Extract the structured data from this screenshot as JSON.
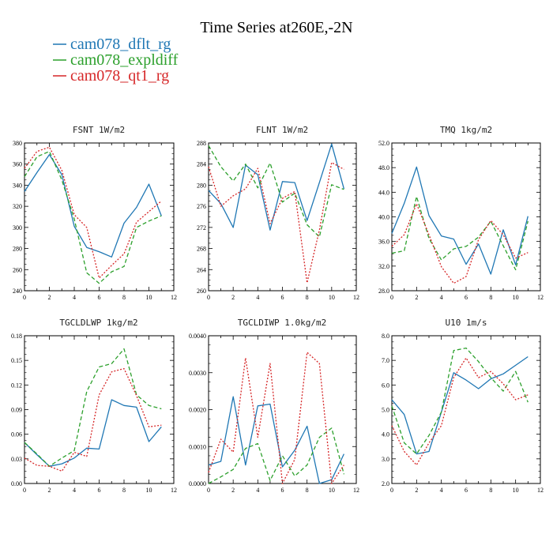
{
  "title": "Time Series at260E,-2N",
  "legend": [
    {
      "label": "cam078_dflt_rg",
      "color": "#1f77b4",
      "dash": "solid"
    },
    {
      "label": "cam078_expldiff",
      "color": "#2ca02c",
      "dash": "dashed"
    },
    {
      "label": "cam078_qt1_rg",
      "color": "#d62728",
      "dash": "dotted"
    }
  ],
  "chart_data": [
    {
      "type": "line",
      "title": "FSNT   1W/m2",
      "x": [
        0,
        1,
        2,
        3,
        4,
        5,
        6,
        7,
        8,
        9,
        10,
        11
      ],
      "xlim": [
        0,
        12
      ],
      "xticks": [
        "0",
        "2",
        "4",
        "6",
        "8",
        "10",
        "12"
      ],
      "ylim": [
        240,
        380
      ],
      "yticks": [
        "240",
        "260",
        "280",
        "300",
        "320",
        "340",
        "360",
        "380"
      ],
      "series": [
        {
          "name": "cam078_dflt_rg",
          "values": [
            334,
            352,
            369,
            350,
            301,
            281,
            277,
            272,
            304,
            319,
            341,
            311
          ]
        },
        {
          "name": "cam078_expldiff",
          "values": [
            348,
            367,
            372,
            345,
            308,
            257,
            247,
            258,
            263,
            300,
            306,
            311
          ]
        },
        {
          "name": "cam078_qt1_rg",
          "values": [
            356,
            372,
            376,
            354,
            312,
            300,
            252,
            264,
            275,
            305,
            315,
            325
          ]
        }
      ]
    },
    {
      "type": "line",
      "title": "FLNT   1W/m2",
      "x": [
        0,
        1,
        2,
        3,
        4,
        5,
        6,
        7,
        8,
        9,
        10,
        11
      ],
      "xlim": [
        0,
        12
      ],
      "xticks": [
        "0",
        "2",
        "4",
        "6",
        "8",
        "10",
        "12"
      ],
      "ylim": [
        260,
        288
      ],
      "yticks": [
        "260",
        "264",
        "268",
        "272",
        "276",
        "280",
        "284",
        "288"
      ],
      "series": [
        {
          "name": "cam078_dflt_rg",
          "values": [
            279,
            276.5,
            272,
            283.8,
            282,
            271.5,
            280.7,
            280.5,
            273.3,
            280.5,
            287.8,
            279.3
          ]
        },
        {
          "name": "cam078_expldiff",
          "values": [
            287.5,
            283.5,
            280.8,
            284,
            279.5,
            284.2,
            276.8,
            278.5,
            272.5,
            270.2,
            280.1,
            279.2
          ]
        },
        {
          "name": "cam078_qt1_rg",
          "values": [
            283.5,
            276,
            278,
            279.3,
            283.2,
            272.7,
            277.5,
            278.8,
            261.5,
            271.5,
            284.3,
            283
          ]
        }
      ]
    },
    {
      "type": "line",
      "title": "TMQ   1kg/m2",
      "x": [
        0,
        1,
        2,
        3,
        4,
        5,
        6,
        7,
        8,
        9,
        10,
        11
      ],
      "xlim": [
        0,
        12
      ],
      "xticks": [
        "0",
        "2",
        "4",
        "6",
        "8",
        "10",
        "12"
      ],
      "ylim": [
        28.0,
        52.0
      ],
      "yticks": [
        "28.0",
        "32.0",
        "36.0",
        "40.0",
        "44.0",
        "48.0",
        "52.0"
      ],
      "series": [
        {
          "name": "cam078_dflt_rg",
          "values": [
            37.3,
            42.2,
            48.1,
            40.2,
            36.9,
            36.4,
            32.3,
            35.6,
            30.7,
            37.9,
            32.2,
            40.1
          ]
        },
        {
          "name": "cam078_expldiff",
          "values": [
            34.1,
            34.5,
            43.3,
            36.5,
            33.0,
            34.8,
            35.2,
            36.7,
            39.3,
            35.3,
            31.4,
            39.3
          ]
        },
        {
          "name": "cam078_qt1_rg",
          "values": [
            35.2,
            37.1,
            42.1,
            37.1,
            31.9,
            29.2,
            30.3,
            36.3,
            39.4,
            37.1,
            33.3,
            34.2
          ]
        }
      ]
    },
    {
      "type": "line",
      "title": "TGCLDLWP   1kg/m2",
      "x": [
        0,
        1,
        2,
        3,
        4,
        5,
        6,
        7,
        8,
        9,
        10,
        11
      ],
      "xlim": [
        0,
        12
      ],
      "xticks": [
        "0",
        "2",
        "4",
        "6",
        "8",
        "10",
        "12"
      ],
      "ylim": [
        0.0,
        0.18
      ],
      "yticks": [
        "0.00",
        "0.03",
        "0.06",
        "0.09",
        "0.12",
        "0.15",
        "0.18"
      ],
      "series": [
        {
          "name": "cam078_dflt_rg",
          "values": [
            0.05,
            0.035,
            0.021,
            0.024,
            0.031,
            0.043,
            0.042,
            0.102,
            0.095,
            0.093,
            0.051,
            0.069
          ]
        },
        {
          "name": "cam078_expldiff",
          "values": [
            0.05,
            0.036,
            0.021,
            0.031,
            0.04,
            0.112,
            0.142,
            0.146,
            0.164,
            0.108,
            0.095,
            0.091
          ]
        },
        {
          "name": "cam078_qt1_rg",
          "values": [
            0.031,
            0.022,
            0.021,
            0.015,
            0.038,
            0.033,
            0.108,
            0.136,
            0.14,
            0.107,
            0.069,
            0.071
          ]
        }
      ]
    },
    {
      "type": "line",
      "title": "TGCLDIWP   1.0kg/m2",
      "x": [
        0,
        1,
        2,
        3,
        4,
        5,
        6,
        7,
        8,
        9,
        10,
        11
      ],
      "xlim": [
        0,
        12
      ],
      "xticks": [
        "0",
        "2",
        "4",
        "6",
        "8",
        "10",
        "12"
      ],
      "ylim": [
        0.0,
        0.004
      ],
      "yticks": [
        "0.0000",
        "0.0010",
        "0.0020",
        "0.0030",
        "0.0040"
      ],
      "series": [
        {
          "name": "cam078_dflt_rg",
          "values": [
            0.0005,
            0.0006,
            0.00235,
            0.0005,
            0.0021,
            0.00215,
            0.00045,
            0.0009,
            0.00155,
            0.0,
            0.0001,
            0.0008
          ]
        },
        {
          "name": "cam078_expldiff",
          "values": [
            0.0,
            0.00018,
            0.00038,
            0.00095,
            0.00108,
            8e-05,
            0.00075,
            0.0002,
            0.0005,
            0.00125,
            0.0015,
            0.00025
          ]
        },
        {
          "name": "cam078_qt1_rg",
          "values": [
            0.0003,
            0.0012,
            0.00085,
            0.0034,
            0.00125,
            0.00325,
            0.0,
            0.00065,
            0.00355,
            0.00325,
            0.0,
            0.0005
          ]
        }
      ]
    },
    {
      "type": "line",
      "title": "U10   1m/s",
      "x": [
        0,
        1,
        2,
        3,
        4,
        5,
        6,
        7,
        8,
        9,
        10,
        11
      ],
      "xlim": [
        0,
        12
      ],
      "xticks": [
        "0",
        "2",
        "4",
        "6",
        "8",
        "10",
        "12"
      ],
      "ylim": [
        2.0,
        8.0
      ],
      "yticks": [
        "2.0",
        "3.0",
        "4.0",
        "5.0",
        "6.0",
        "7.0",
        "8.0"
      ],
      "series": [
        {
          "name": "cam078_dflt_rg",
          "values": [
            5.4,
            4.8,
            3.2,
            3.3,
            4.9,
            6.5,
            6.2,
            5.85,
            6.25,
            6.45,
            6.8,
            7.15
          ]
        },
        {
          "name": "cam078_expldiff",
          "values": [
            5.15,
            3.65,
            3.2,
            3.95,
            4.9,
            7.4,
            7.5,
            6.95,
            6.3,
            5.75,
            6.55,
            5.3
          ]
        },
        {
          "name": "cam078_qt1_rg",
          "values": [
            4.35,
            3.3,
            2.75,
            3.65,
            4.35,
            6.3,
            7.1,
            6.3,
            6.55,
            6.05,
            5.4,
            5.6
          ]
        }
      ]
    }
  ]
}
